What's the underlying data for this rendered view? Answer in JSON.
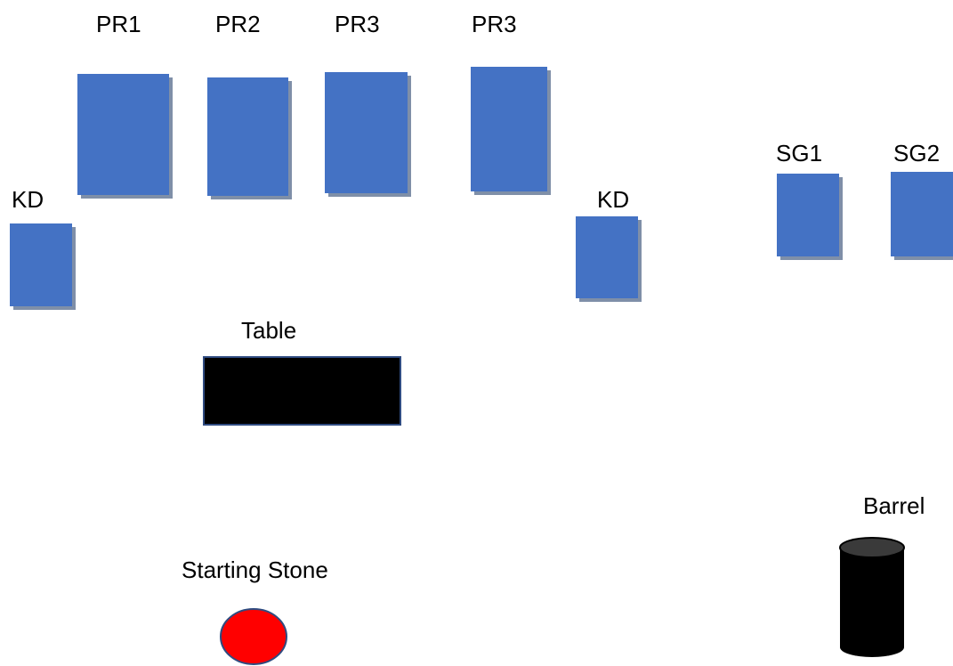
{
  "colors": {
    "prop_fill": "#4472C4",
    "prop_shadow": "#7F8FA8",
    "table_fill": "#000000",
    "stone_fill": "#FF0000",
    "stone_stroke": "#2F4B80",
    "barrel_fill": "#000000",
    "barrel_top": "#404040"
  },
  "labels": {
    "pr1": "PR1",
    "pr2": "PR2",
    "pr3a": "PR3",
    "pr3b": "PR3",
    "kd_left": "KD",
    "kd_right": "KD",
    "sg1": "SG1",
    "sg2": "SG2",
    "table": "Table",
    "barrel": "Barrel",
    "starting_stone": "Starting Stone"
  }
}
